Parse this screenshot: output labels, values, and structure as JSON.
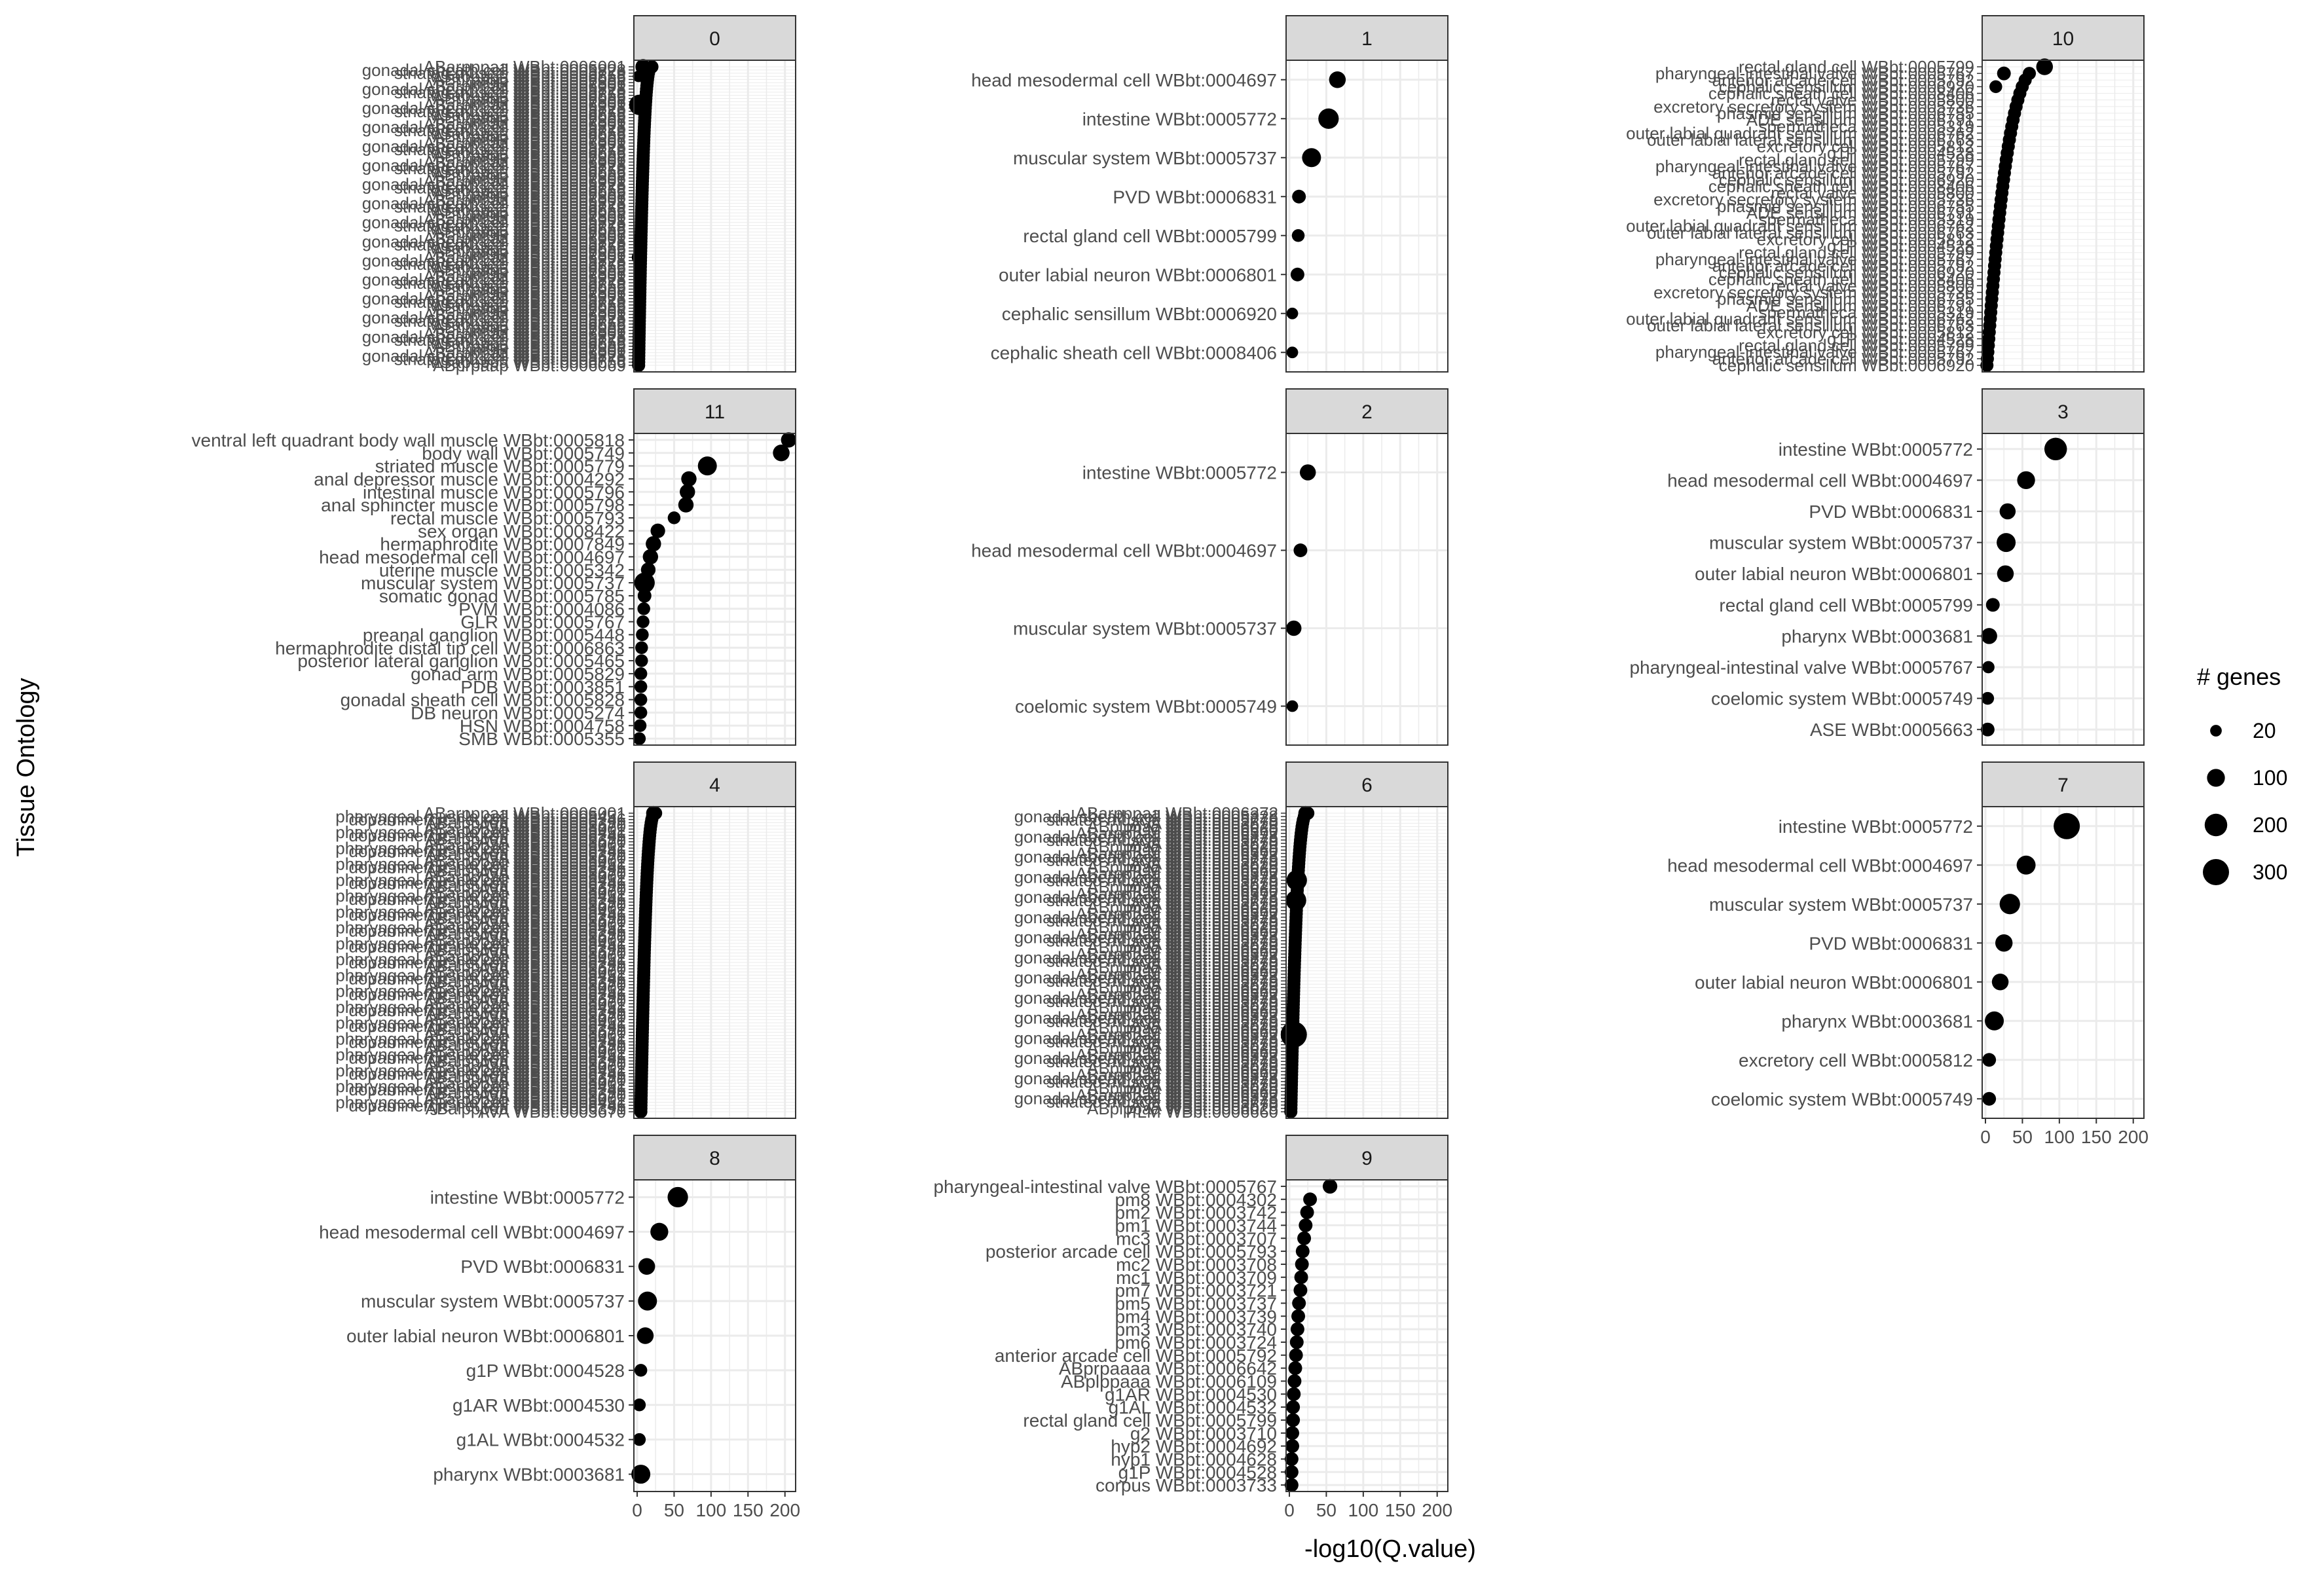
{
  "chart_data": {
    "type": "scatter",
    "xlabel": "-log10(Q.value)",
    "ylabel": "Tissue Ontology",
    "xlim": [
      0,
      210
    ],
    "x_ticks": [
      "0",
      "50",
      "100",
      "150",
      "200"
    ],
    "grid": true,
    "legend": {
      "title": "# genes",
      "placement": "right",
      "entries": [
        {
          "label": "20",
          "value": 20
        },
        {
          "label": "100",
          "value": 100
        },
        {
          "label": "200",
          "value": 200
        },
        {
          "label": "300",
          "value": 300
        }
      ]
    },
    "panels": [
      {
        "title": "0",
        "dense": true,
        "n_rows": 95,
        "x_range": [
          2,
          20
        ],
        "visible_labels": [
          "ABarpppaa WBbt:0006001",
          "gonadal sheath cell WBbt:0005828",
          "striated muscle WBbt:0005779",
          "MSappppa WBbt:0006656",
          "ABprpaap WBbt:0006069",
          "int9R WBbt:0007806"
        ],
        "points": [
          {
            "label": "ABarpppaa WBbt:0006001",
            "x": 8,
            "genes": 60,
            "row": 0
          },
          {
            "label": "gonadal sheath cell WBbt:0005828",
            "x": 2,
            "genes": 20,
            "row": 3
          },
          {
            "label": "body wall WBbt:0005749",
            "x": 3,
            "genes": 150,
            "row": 12
          },
          {
            "label": "striated muscle WBbt:0005779",
            "x": 2,
            "genes": 40,
            "row": 60
          }
        ]
      },
      {
        "title": "1",
        "dense": false,
        "points": [
          {
            "label": "head mesodermal cell WBbt:0004697",
            "x": 65,
            "genes": 80
          },
          {
            "label": "intestine WBbt:0005772",
            "x": 53,
            "genes": 150
          },
          {
            "label": "muscular system WBbt:0005737",
            "x": 30,
            "genes": 120
          },
          {
            "label": "PVD WBbt:0006831",
            "x": 13,
            "genes": 40
          },
          {
            "label": "rectal gland cell WBbt:0005799",
            "x": 12,
            "genes": 30
          },
          {
            "label": "outer labial neuron WBbt:0006801",
            "x": 11,
            "genes": 40
          },
          {
            "label": "cephalic sensillum WBbt:0006920",
            "x": 4,
            "genes": 20
          },
          {
            "label": "cephalic sheath cell WBbt:0008406",
            "x": 4,
            "genes": 20
          }
        ]
      },
      {
        "title": "10",
        "dense": true,
        "n_rows": 46,
        "x_range": [
          2,
          80
        ],
        "visible_labels": [
          "rectal gland cell WBbt:0005799",
          "pharyngeal-intestinal valve WBbt:0005767",
          "anterior arcade cell WBbt:0005792",
          "cephalic sensillum WBbt:0006920",
          "cephalic sheath cell WBbt:0008406",
          "rectal valve WBbt:0005800",
          "excretory secretory system WBbt:0005736",
          "phasmid sensillum WBbt:0006755",
          "ADE sensillum WBbt:0006791",
          "spermatheca WBbt:0005319",
          "outer labial quadrant sensillum WBbt:0006762",
          "outer labial lateral sensillum WBbt:0006763",
          "excretory cell WBbt:0005812",
          "g1P WBbt:0004528"
        ],
        "points": [
          {
            "label": "rectal gland cell WBbt:0005799",
            "x": 80,
            "genes": 80,
            "row": 0
          },
          {
            "label": "pharyngeal-intestinal valve WBbt:0005767",
            "x": 25,
            "genes": 40,
            "row": 1
          },
          {
            "label": "anterior arcade cell WBbt:0005792",
            "x": 14,
            "genes": 30,
            "row": 3
          }
        ]
      },
      {
        "title": "11",
        "dense": false,
        "points": [
          {
            "label": "ventral left quadrant body wall muscle WBbt:0005818",
            "x": 205,
            "genes": 60
          },
          {
            "label": "body wall WBbt:0005749",
            "x": 195,
            "genes": 80
          },
          {
            "label": "striated muscle WBbt:0005779",
            "x": 95,
            "genes": 120
          },
          {
            "label": "anal depressor muscle WBbt:0004292",
            "x": 70,
            "genes": 60
          },
          {
            "label": "intestinal muscle WBbt:0005796",
            "x": 68,
            "genes": 60
          },
          {
            "label": "anal sphincter muscle WBbt:0005798",
            "x": 66,
            "genes": 60
          },
          {
            "label": "rectal muscle WBbt:0005793",
            "x": 50,
            "genes": 30
          },
          {
            "label": "sex organ WBbt:0008422",
            "x": 28,
            "genes": 50
          },
          {
            "label": "hermaphrodite WBbt:0007849",
            "x": 22,
            "genes": 60
          },
          {
            "label": "head mesodermal cell WBbt:0004697",
            "x": 18,
            "genes": 60
          },
          {
            "label": "uterine muscle WBbt:0005342",
            "x": 15,
            "genes": 50
          },
          {
            "label": "muscular system WBbt:0005737",
            "x": 10,
            "genes": 150
          },
          {
            "label": "somatic gonad WBbt:0005785",
            "x": 10,
            "genes": 40
          },
          {
            "label": "PVM WBbt:0004086",
            "x": 9,
            "genes": 30
          },
          {
            "label": "GLR WBbt:0005767",
            "x": 8,
            "genes": 30
          },
          {
            "label": "preanal ganglion WBbt:0005448",
            "x": 7,
            "genes": 30
          },
          {
            "label": "hermaphrodite distal tip cell WBbt:0006863",
            "x": 6,
            "genes": 30
          },
          {
            "label": "posterior lateral ganglion WBbt:0005465",
            "x": 6,
            "genes": 30
          },
          {
            "label": "gonad arm WBbt:0005829",
            "x": 5,
            "genes": 30
          },
          {
            "label": "PDB WBbt:0003851",
            "x": 5,
            "genes": 30
          },
          {
            "label": "gonadal sheath cell WBbt:0005828",
            "x": 5,
            "genes": 30
          },
          {
            "label": "DB neuron WBbt:0005274",
            "x": 5,
            "genes": 30
          },
          {
            "label": "HSN WBbt:0004758",
            "x": 4,
            "genes": 30
          },
          {
            "label": "SMB WBbt:0005355",
            "x": 3,
            "genes": 30
          }
        ]
      },
      {
        "title": "2",
        "dense": false,
        "points": [
          {
            "label": "intestine WBbt:0005772",
            "x": 25,
            "genes": 70
          },
          {
            "label": "head mesodermal cell WBbt:0004697",
            "x": 15,
            "genes": 40
          },
          {
            "label": "muscular system WBbt:0005737",
            "x": 6,
            "genes": 60
          },
          {
            "label": "coelomic system WBbt:0005749",
            "x": 4,
            "genes": 20
          }
        ]
      },
      {
        "title": "3",
        "dense": false,
        "points": [
          {
            "label": "intestine WBbt:0005772",
            "x": 95,
            "genes": 200
          },
          {
            "label": "head mesodermal cell WBbt:0004697",
            "x": 55,
            "genes": 100
          },
          {
            "label": "PVD WBbt:0006831",
            "x": 30,
            "genes": 70
          },
          {
            "label": "muscular system WBbt:0005737",
            "x": 28,
            "genes": 120
          },
          {
            "label": "outer labial neuron WBbt:0006801",
            "x": 27,
            "genes": 80
          },
          {
            "label": "rectal gland cell WBbt:0005799",
            "x": 10,
            "genes": 40
          },
          {
            "label": "pharynx WBbt:0003681",
            "x": 5,
            "genes": 70
          },
          {
            "label": "pharyngeal-intestinal valve WBbt:0005767",
            "x": 4,
            "genes": 25
          },
          {
            "label": "coelomic system WBbt:0005749",
            "x": 3,
            "genes": 30
          },
          {
            "label": "ASE WBbt:0005663",
            "x": 3,
            "genes": 40
          }
        ]
      },
      {
        "title": "4",
        "dense": true,
        "n_rows": 95,
        "x_range": [
          5,
          25
        ],
        "visible_labels": [
          "ABarpppaa WBbt:0006001",
          "pharyngeal muscle cell WBbt:0005451",
          "dopaminergic neuron WBbt:0006746",
          "ABalpppaa WBbt:0006391",
          "AVA WBbt:0003670"
        ],
        "points": [
          {
            "label": "ABarpppaa WBbt:0006001",
            "x": 22,
            "genes": 50,
            "row": 0
          }
        ]
      },
      {
        "title": "6",
        "dense": true,
        "n_rows": 90,
        "x_range": [
          2,
          25
        ],
        "visible_labels": [
          "ABarpppaa WBbt:0006372",
          "gonadal sheath cell WBbt:0005828",
          "striated muscle WBbt:0005779",
          "AVA WBbt:0003670",
          "ABplppaa WBbt:0006025",
          "PLM WBbt:0006660"
        ],
        "points": [
          {
            "label": "ABarpppaa WBbt:0006372",
            "x": 22,
            "genes": 50,
            "row": 0
          },
          {
            "label": "gonadal sheath cell WBbt:0005828",
            "x": 10,
            "genes": 150,
            "row": 20
          },
          {
            "label": "striated muscle WBbt:0005779",
            "x": 9,
            "genes": 150,
            "row": 26
          },
          {
            "label": "body wall WBbt:0005749",
            "x": 6,
            "genes": 300,
            "row": 66
          }
        ]
      },
      {
        "title": "7",
        "dense": false,
        "points": [
          {
            "label": "intestine WBbt:0005772",
            "x": 110,
            "genes": 300
          },
          {
            "label": "head mesodermal cell WBbt:0004697",
            "x": 55,
            "genes": 120
          },
          {
            "label": "muscular system WBbt:0005737",
            "x": 33,
            "genes": 150
          },
          {
            "label": "PVD WBbt:0006831",
            "x": 25,
            "genes": 90
          },
          {
            "label": "outer labial neuron WBbt:0006801",
            "x": 20,
            "genes": 80
          },
          {
            "label": "pharynx WBbt:0003681",
            "x": 12,
            "genes": 120
          },
          {
            "label": "excretory cell WBbt:0005812",
            "x": 5,
            "genes": 40
          },
          {
            "label": "coelomic system WBbt:0005749",
            "x": 5,
            "genes": 40
          }
        ]
      },
      {
        "title": "8",
        "dense": false,
        "points": [
          {
            "label": "intestine WBbt:0005772",
            "x": 55,
            "genes": 150
          },
          {
            "label": "head mesodermal cell WBbt:0004697",
            "x": 30,
            "genes": 100
          },
          {
            "label": "PVD WBbt:0006831",
            "x": 13,
            "genes": 80
          },
          {
            "label": "muscular system WBbt:0005737",
            "x": 14,
            "genes": 120
          },
          {
            "label": "outer labial neuron WBbt:0006801",
            "x": 11,
            "genes": 80
          },
          {
            "label": "g1P WBbt:0004528",
            "x": 5,
            "genes": 30
          },
          {
            "label": "g1AR WBbt:0004530",
            "x": 3,
            "genes": 30
          },
          {
            "label": "g1AL WBbt:0004532",
            "x": 3,
            "genes": 30
          },
          {
            "label": "pharynx WBbt:0003681",
            "x": 5,
            "genes": 120
          }
        ]
      },
      {
        "title": "9",
        "dense": false,
        "points": [
          {
            "label": "pharyngeal-intestinal valve WBbt:0005767",
            "x": 55,
            "genes": 50
          },
          {
            "label": "pm8 WBbt:0004302",
            "x": 28,
            "genes": 40
          },
          {
            "label": "pm2 WBbt:0003742",
            "x": 24,
            "genes": 40
          },
          {
            "label": "pm1 WBbt:0003744",
            "x": 22,
            "genes": 40
          },
          {
            "label": "mc3 WBbt:0003707",
            "x": 20,
            "genes": 40
          },
          {
            "label": "posterior arcade cell WBbt:0005793",
            "x": 18,
            "genes": 40
          },
          {
            "label": "mc2 WBbt:0003708",
            "x": 17,
            "genes": 40
          },
          {
            "label": "mc1 WBbt:0003709",
            "x": 16,
            "genes": 40
          },
          {
            "label": "pm7 WBbt:0003721",
            "x": 15,
            "genes": 40
          },
          {
            "label": "pm5 WBbt:0003737",
            "x": 13,
            "genes": 40
          },
          {
            "label": "pm4 WBbt:0003739",
            "x": 12,
            "genes": 40
          },
          {
            "label": "pm3 WBbt:0003740",
            "x": 11,
            "genes": 40
          },
          {
            "label": "pm6 WBbt:0003724",
            "x": 10,
            "genes": 40
          },
          {
            "label": "anterior arcade cell WBbt:0005792",
            "x": 9,
            "genes": 40
          },
          {
            "label": "ABprpaaaa WBbt:0006642",
            "x": 8,
            "genes": 40
          },
          {
            "label": "ABplppaaa WBbt:0006109",
            "x": 7,
            "genes": 40
          },
          {
            "label": "g1AR WBbt:0004530",
            "x": 6,
            "genes": 40
          },
          {
            "label": "g1AL WBbt:0004532",
            "x": 5,
            "genes": 40
          },
          {
            "label": "rectal gland cell WBbt:0005799",
            "x": 5,
            "genes": 40
          },
          {
            "label": "g2 WBbt:0003710",
            "x": 4,
            "genes": 40
          },
          {
            "label": "hyp2 WBbt:0004692",
            "x": 4,
            "genes": 40
          },
          {
            "label": "hyp1 WBbt:0004628",
            "x": 3,
            "genes": 40
          },
          {
            "label": "g1P WBbt:0004528",
            "x": 3,
            "genes": 40
          },
          {
            "label": "corpus WBbt:0003733",
            "x": 3,
            "genes": 40
          }
        ]
      }
    ]
  }
}
